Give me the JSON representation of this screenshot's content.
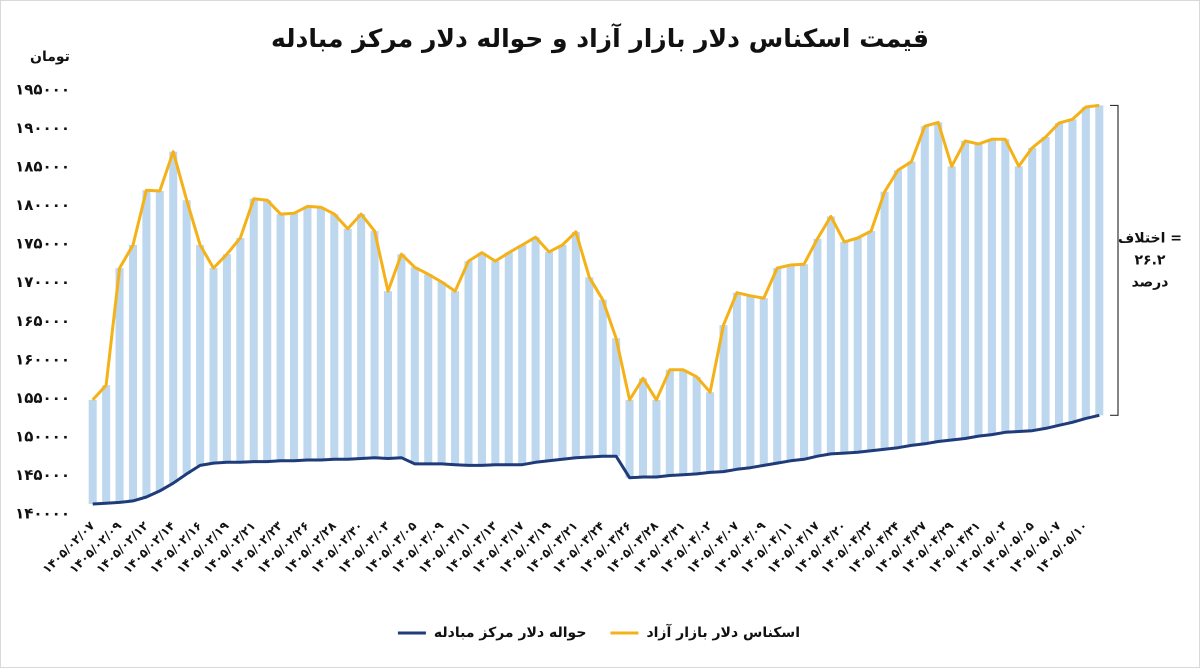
{
  "chart_data": {
    "type": "line",
    "title": "قیمت اسکناس دلار بازار آزاد و حواله دلار مرکز مبادله",
    "y_label": "تومان",
    "annotation": [
      "اختلاف =",
      "۲۶.۲",
      "درصد"
    ],
    "high_low_bars": true,
    "bar_color": "#bdd7ee",
    "legend_position": "bottom",
    "grid": false,
    "ylim": [
      140000,
      195000
    ],
    "yticks": [
      {
        "value": 140000,
        "label": "۱۴۰۰۰۰"
      },
      {
        "value": 145000,
        "label": "۱۴۵۰۰۰"
      },
      {
        "value": 150000,
        "label": "۱۵۰۰۰۰"
      },
      {
        "value": 155000,
        "label": "۱۵۵۰۰۰"
      },
      {
        "value": 160000,
        "label": "۱۶۰۰۰۰"
      },
      {
        "value": 165000,
        "label": "۱۶۵۰۰۰"
      },
      {
        "value": 170000,
        "label": "۱۷۰۰۰۰"
      },
      {
        "value": 175000,
        "label": "۱۷۵۰۰۰"
      },
      {
        "value": 180000,
        "label": "۱۸۰۰۰۰"
      },
      {
        "value": 185000,
        "label": "۱۸۵۰۰۰"
      },
      {
        "value": 190000,
        "label": "۱۹۰۰۰۰"
      },
      {
        "value": 195000,
        "label": "۱۹۵۰۰۰"
      }
    ],
    "categories": [
      "۱۴۰۵/۰۲/۰۷",
      null,
      "۱۴۰۵/۰۲/۰۹",
      null,
      "۱۴۰۵/۰۲/۱۲",
      null,
      "۱۴۰۵/۰۲/۱۴",
      null,
      "۱۴۰۵/۰۲/۱۶",
      null,
      "۱۴۰۵/۰۲/۱۹",
      null,
      "۱۴۰۵/۰۲/۲۱",
      null,
      "۱۴۰۵/۰۲/۲۳",
      null,
      "۱۴۰۵/۰۲/۲۶",
      null,
      "۱۴۰۵/۰۲/۲۸",
      null,
      "۱۴۰۵/۰۲/۳۰",
      null,
      "۱۴۰۵/۰۳/۰۳",
      null,
      "۱۴۰۵/۰۳/۰۵",
      null,
      "۱۴۰۵/۰۳/۰۹",
      null,
      "۱۴۰۵/۰۳/۱۱",
      null,
      "۱۴۰۵/۰۳/۱۳",
      null,
      "۱۴۰۵/۰۳/۱۷",
      null,
      "۱۴۰۵/۰۳/۱۹",
      null,
      "۱۴۰۵/۰۳/۲۱",
      null,
      "۱۴۰۵/۰۳/۲۴",
      null,
      "۱۴۰۵/۰۳/۲۶",
      null,
      "۱۴۰۵/۰۳/۲۸",
      null,
      "۱۴۰۵/۰۳/۳۱",
      null,
      "۱۴۰۵/۰۴/۰۲",
      null,
      "۱۴۰۵/۰۴/۰۷",
      null,
      "۱۴۰۵/۰۴/۰۹",
      null,
      "۱۴۰۵/۰۴/۱۱",
      null,
      "۱۴۰۵/۰۴/۱۷",
      null,
      "۱۴۰۵/۰۴/۲۰",
      null,
      "۱۴۰۵/۰۴/۲۲",
      null,
      "۱۴۰۵/۰۴/۲۴",
      null,
      "۱۴۰۵/۰۴/۲۷",
      null,
      "۱۴۰۵/۰۴/۲۹",
      null,
      "۱۴۰۵/۰۴/۳۱",
      null,
      "۱۴۰۵/۰۵/۰۳",
      null,
      "۱۴۰۵/۰۵/۰۵",
      null,
      "۱۴۰۵/۰۵/۰۷",
      null,
      "۱۴۰۵/۰۵/۱۰",
      null
    ],
    "series": [
      {
        "name": "اسکناس دلار بازار آزاد",
        "color": "#f5b118",
        "values": [
          154800,
          156700,
          171900,
          174900,
          182000,
          181900,
          187000,
          180700,
          174900,
          171900,
          173700,
          175800,
          180900,
          180700,
          178900,
          179000,
          179900,
          179800,
          178900,
          177000,
          178900,
          176700,
          168900,
          173700,
          172000,
          171100,
          170100,
          168900,
          172800,
          173900,
          172800,
          173900,
          174900,
          175900,
          174000,
          174900,
          176600,
          170700,
          167800,
          162800,
          154800,
          157600,
          154800,
          158700,
          158700,
          157800,
          155800,
          164500,
          168700,
          168300,
          168000,
          171900,
          172300,
          172400,
          175700,
          178600,
          175300,
          175800,
          176700,
          181800,
          184600,
          185700,
          190300,
          190800,
          185100,
          188400,
          188000,
          188600,
          188600,
          185100,
          187500,
          188900,
          190700,
          191200,
          192800,
          193000
        ]
      },
      {
        "name": "حواله دلار مرکز مبادله",
        "color": "#1f3b7a",
        "values": [
          141300,
          141400,
          141500,
          141700,
          142200,
          143000,
          144000,
          145200,
          146300,
          146600,
          146700,
          146700,
          146800,
          146800,
          146900,
          146900,
          147000,
          147000,
          147100,
          147100,
          147200,
          147300,
          147200,
          147300,
          146500,
          146500,
          146500,
          146400,
          146300,
          146300,
          146400,
          146400,
          146400,
          146700,
          146900,
          147100,
          147300,
          147400,
          147500,
          147500,
          144700,
          144800,
          144800,
          145000,
          145100,
          145200,
          145400,
          145500,
          145800,
          146000,
          146300,
          146600,
          146900,
          147100,
          147500,
          147800,
          147900,
          148000,
          148200,
          148400,
          148600,
          148900,
          149100,
          149400,
          149600,
          149800,
          150100,
          150300,
          150600,
          150700,
          150800,
          151100,
          151500,
          151900,
          152400,
          152800
        ]
      }
    ]
  }
}
